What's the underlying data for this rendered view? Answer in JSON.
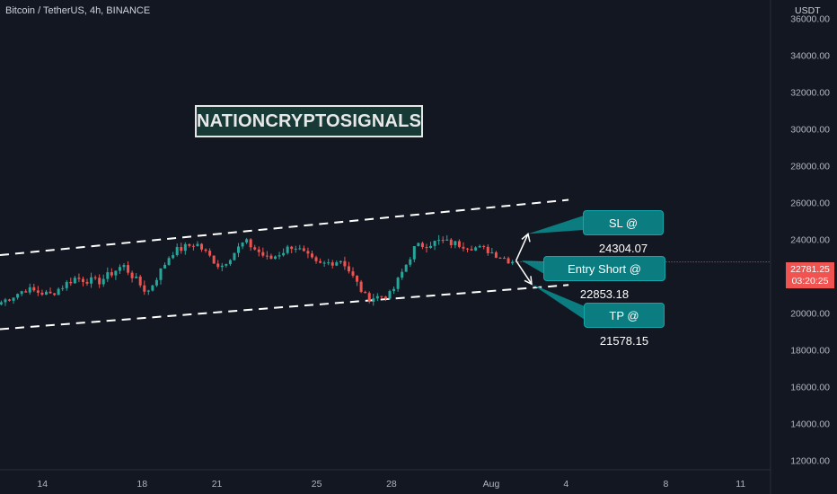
{
  "header": {
    "title": "Bitcoin / TetherUS, 4h, BINANCE"
  },
  "watermark": "NATIONCRYPTOSIGNALS",
  "annotations": {
    "sl": "SL @ 24304.07",
    "entry": "Entry Short @ 22853.18",
    "tp": "TP @ 21578.15"
  },
  "price_scale": {
    "currency": "USDT",
    "last_price": "22781.25",
    "countdown": "03:20:25"
  },
  "colors": {
    "background": "#131722",
    "bull": "#26a69a",
    "bear": "#ef5350",
    "callout": "#0b7d80",
    "price_tag": "#f05350"
  },
  "chart_data": {
    "type": "candlestick",
    "title": "Bitcoin / TetherUS, 4h, BINANCE",
    "ylim": [
      11500,
      37000
    ],
    "y_ticks": [
      12000,
      14000,
      16000,
      18000,
      20000,
      22000,
      24000,
      26000,
      28000,
      30000,
      32000,
      34000,
      36000
    ],
    "y_tick_labels": [
      "12000.00",
      "14000.00",
      "16000.00",
      "18000.00",
      "20000.00",
      "22000.00",
      "24000.00",
      "26000.00",
      "28000.00",
      "30000.00",
      "32000.00",
      "34000.00",
      "36000.00"
    ],
    "x_range_days": [
      12.3,
      43.2
    ],
    "x_ticks": [
      {
        "day": 14,
        "label": "14"
      },
      {
        "day": 18,
        "label": "18"
      },
      {
        "day": 21,
        "label": "21"
      },
      {
        "day": 25,
        "label": "25"
      },
      {
        "day": 28,
        "label": "28"
      },
      {
        "day": 32,
        "label": "Aug"
      },
      {
        "day": 35,
        "label": "4"
      },
      {
        "day": 39,
        "label": "8"
      },
      {
        "day": 42,
        "label": "11"
      }
    ],
    "key_prices": [
      20600,
      21300,
      21000,
      21900,
      21700,
      22600,
      21100,
      23300,
      23800,
      22500,
      23900,
      22900,
      23700,
      22600,
      22900,
      20800,
      21000,
      23600,
      23900,
      23700,
      23400,
      22781.25
    ],
    "channel_upper": {
      "start": {
        "day": 12.3,
        "price": 23150
      },
      "end": {
        "day": 35.1,
        "price": 26150
      }
    },
    "channel_lower": {
      "start": {
        "day": 12.3,
        "price": 19130
      },
      "end": {
        "day": 35.1,
        "price": 21530
      }
    },
    "levels": {
      "stop_loss": 24304.07,
      "entry_short": 22853.18,
      "take_profit": 21578.15
    }
  }
}
